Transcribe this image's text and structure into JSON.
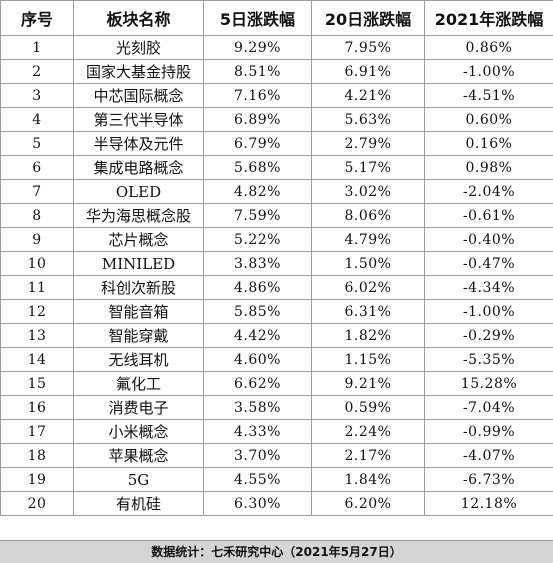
{
  "table": {
    "headers": [
      "序号",
      "板块名称",
      "5日涨跌幅",
      "20日涨跌幅",
      "2021年涨跌幅"
    ],
    "rows": [
      [
        "1",
        "光刻胶",
        "9.29%",
        "7.95%",
        "0.86%"
      ],
      [
        "2",
        "国家大基金持股",
        "8.51%",
        "6.91%",
        "-1.00%"
      ],
      [
        "3",
        "中芯国际概念",
        "7.16%",
        "4.21%",
        "-4.51%"
      ],
      [
        "4",
        "第三代半导体",
        "6.89%",
        "5.63%",
        "0.60%"
      ],
      [
        "5",
        "半导体及元件",
        "6.79%",
        "2.79%",
        "0.16%"
      ],
      [
        "6",
        "集成电路概念",
        "5.68%",
        "5.17%",
        "0.98%"
      ],
      [
        "7",
        "OLED",
        "4.82%",
        "3.02%",
        "-2.04%"
      ],
      [
        "8",
        "华为海思概念股",
        "7.59%",
        "8.06%",
        "-0.61%"
      ],
      [
        "9",
        "芯片概念",
        "5.22%",
        "4.79%",
        "-0.40%"
      ],
      [
        "10",
        "MINILED",
        "3.83%",
        "1.50%",
        "-0.47%"
      ],
      [
        "11",
        "科创次新股",
        "4.86%",
        "6.02%",
        "-4.34%"
      ],
      [
        "12",
        "智能音箱",
        "5.85%",
        "6.31%",
        "-1.00%"
      ],
      [
        "13",
        "智能穿戴",
        "4.42%",
        "1.82%",
        "-0.29%"
      ],
      [
        "14",
        "无线耳机",
        "4.60%",
        "1.15%",
        "-5.35%"
      ],
      [
        "15",
        "氟化工",
        "6.62%",
        "9.21%",
        "15.28%"
      ],
      [
        "16",
        "消费电子",
        "3.58%",
        "0.59%",
        "-7.04%"
      ],
      [
        "17",
        "小米概念",
        "4.33%",
        "2.24%",
        "-0.99%"
      ],
      [
        "18",
        "苹果概念",
        "3.70%",
        "2.17%",
        "-4.07%"
      ],
      [
        "19",
        "5G",
        "4.55%",
        "1.84%",
        "-6.73%"
      ],
      [
        "20",
        "有机硅",
        "6.30%",
        "6.20%",
        "12.18%"
      ]
    ]
  },
  "footer": {
    "text": "数据统计：七禾研究中心（2021年5月27日）"
  }
}
